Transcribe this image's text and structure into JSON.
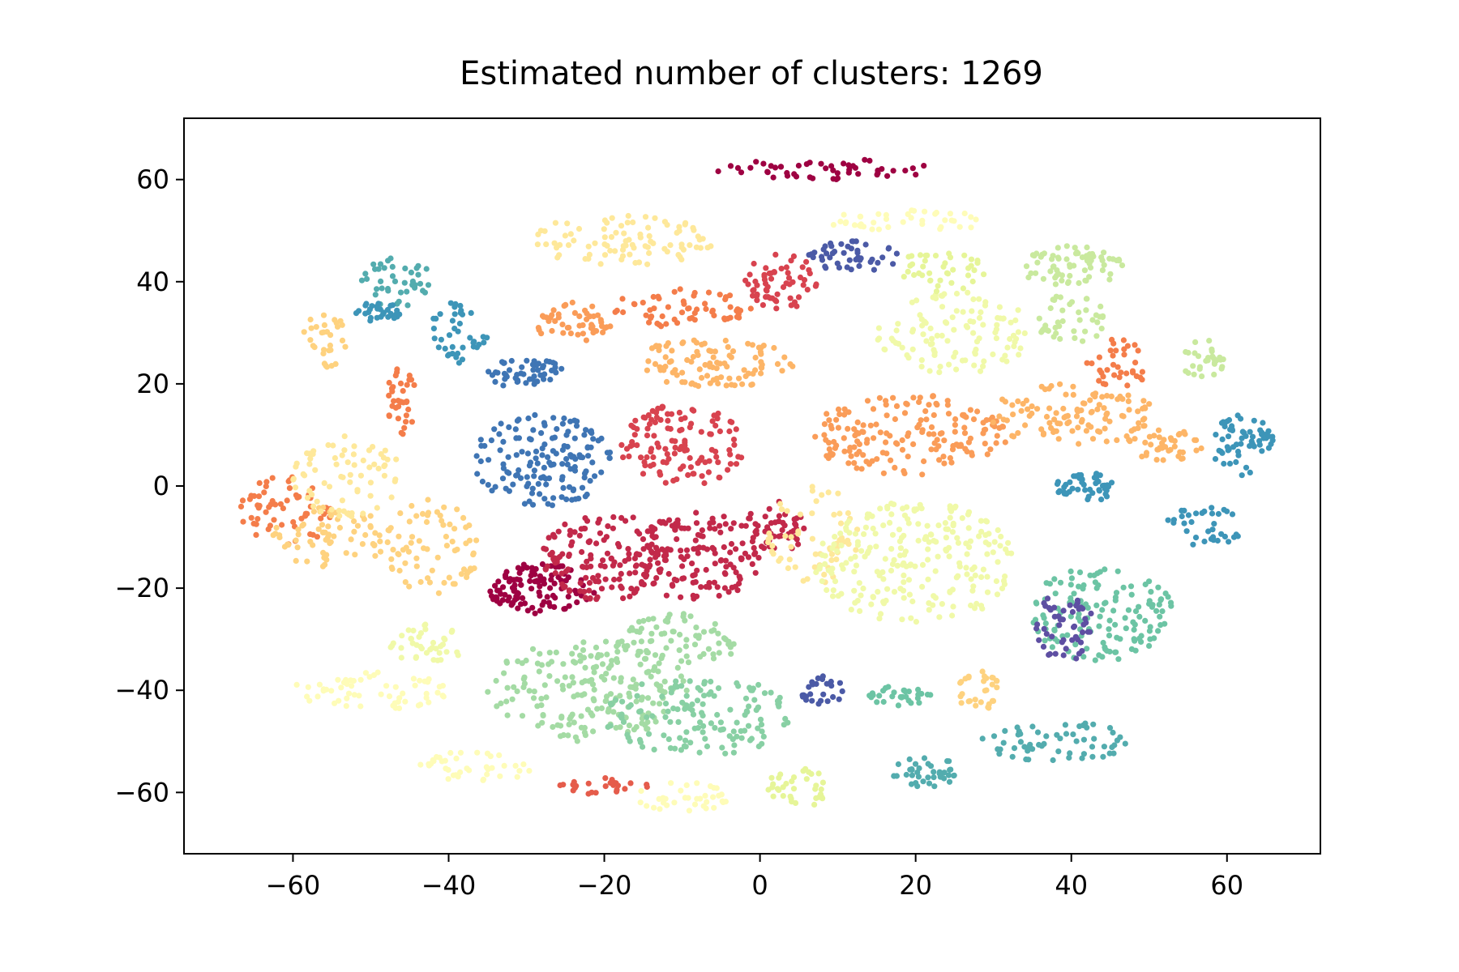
{
  "chart_data": {
    "type": "scatter",
    "title": "Estimated number of clusters: 1269",
    "xlabel": "",
    "ylabel": "",
    "xlim": [
      -74,
      72
    ],
    "ylim": [
      -72,
      72
    ],
    "xticks": [
      -60,
      -40,
      -20,
      0,
      20,
      40,
      60
    ],
    "yticks": [
      -60,
      -40,
      -20,
      0,
      20,
      40,
      60
    ],
    "xtick_labels": [
      "−60",
      "−40",
      "−20",
      "0",
      "20",
      "40",
      "60"
    ],
    "ytick_labels": [
      "−60",
      "−40",
      "−20",
      "0",
      "20",
      "40",
      "60"
    ],
    "grid": false,
    "legend": "none",
    "colormap": "Spectral",
    "clusters": [
      {
        "color": "#9e0142",
        "x": -28,
        "y": -20,
        "rx": 7,
        "ry": 5,
        "n": 110
      },
      {
        "color": "#9e0142",
        "x": 10,
        "y": 62,
        "rx": 16,
        "ry": 2,
        "n": 50
      },
      {
        "color": "#c2294a",
        "x": -20,
        "y": -14,
        "rx": 8,
        "ry": 9,
        "n": 140
      },
      {
        "color": "#c2294a",
        "x": -8,
        "y": -14,
        "rx": 8,
        "ry": 9,
        "n": 140
      },
      {
        "color": "#c2294a",
        "x": 2,
        "y": -8,
        "rx": 4,
        "ry": 5,
        "n": 50
      },
      {
        "color": "#d8434f",
        "x": -10,
        "y": 8,
        "rx": 8,
        "ry": 8,
        "n": 120
      },
      {
        "color": "#d8434f",
        "x": 3,
        "y": 40,
        "rx": 5,
        "ry": 6,
        "n": 60
      },
      {
        "color": "#e55c4b",
        "x": -20,
        "y": -59,
        "rx": 6,
        "ry": 2,
        "n": 25
      },
      {
        "color": "#f47d4a",
        "x": -61,
        "y": -5,
        "rx": 6,
        "ry": 7,
        "n": 60
      },
      {
        "color": "#f47d4a",
        "x": -46,
        "y": 17,
        "rx": 2,
        "ry": 7,
        "n": 35
      },
      {
        "color": "#f47d4a",
        "x": 46,
        "y": 24,
        "rx": 4,
        "ry": 5,
        "n": 35
      },
      {
        "color": "#f47d4a",
        "x": -10,
        "y": 35,
        "rx": 9,
        "ry": 4,
        "n": 60
      },
      {
        "color": "#fa9c58",
        "x": 19,
        "y": 10,
        "rx": 13,
        "ry": 8,
        "n": 170
      },
      {
        "color": "#fa9c58",
        "x": -24,
        "y": 32,
        "rx": 5,
        "ry": 4,
        "n": 50
      },
      {
        "color": "#fdb567",
        "x": 40,
        "y": 14,
        "rx": 11,
        "ry": 6,
        "n": 110
      },
      {
        "color": "#fdb567",
        "x": -6,
        "y": 24,
        "rx": 11,
        "ry": 5,
        "n": 100
      },
      {
        "color": "#fdb567",
        "x": 52,
        "y": 8,
        "rx": 5,
        "ry": 3,
        "n": 40
      },
      {
        "color": "#fed27f",
        "x": -55,
        "y": -10,
        "rx": 8,
        "ry": 6,
        "n": 70
      },
      {
        "color": "#fed27f",
        "x": -42,
        "y": -12,
        "rx": 6,
        "ry": 10,
        "n": 70
      },
      {
        "color": "#fed27f",
        "x": 28,
        "y": -40,
        "rx": 3,
        "ry": 4,
        "n": 30
      },
      {
        "color": "#fed27f",
        "x": -56,
        "y": 28,
        "rx": 3,
        "ry": 7,
        "n": 30
      },
      {
        "color": "#fee89a",
        "x": -53,
        "y": 2,
        "rx": 7,
        "ry": 8,
        "n": 70
      },
      {
        "color": "#fee89a",
        "x": -18,
        "y": 48,
        "rx": 12,
        "ry": 5,
        "n": 90
      },
      {
        "color": "#fee89a",
        "x": 7,
        "y": -10,
        "rx": 6,
        "ry": 10,
        "n": 60
      },
      {
        "color": "#fefcb8",
        "x": -50,
        "y": -40,
        "rx": 10,
        "ry": 4,
        "n": 60
      },
      {
        "color": "#fefcb8",
        "x": -37,
        "y": -55,
        "rx": 8,
        "ry": 3,
        "n": 40
      },
      {
        "color": "#fefcb8",
        "x": -10,
        "y": -61,
        "rx": 6,
        "ry": 3,
        "n": 35
      },
      {
        "color": "#fefcb8",
        "x": 20,
        "y": 52,
        "rx": 12,
        "ry": 2,
        "n": 40
      },
      {
        "color": "#f0f9a8",
        "x": 20,
        "y": -15,
        "rx": 13,
        "ry": 12,
        "n": 230
      },
      {
        "color": "#f0f9a8",
        "x": 25,
        "y": 30,
        "rx": 10,
        "ry": 8,
        "n": 110
      },
      {
        "color": "#f0f9a8",
        "x": -43,
        "y": -31,
        "rx": 5,
        "ry": 4,
        "n": 40
      },
      {
        "color": "#e6f598",
        "x": 5,
        "y": -59,
        "rx": 4,
        "ry": 4,
        "n": 35
      },
      {
        "color": "#e6f598",
        "x": 23,
        "y": 42,
        "rx": 6,
        "ry": 4,
        "n": 40
      },
      {
        "color": "#c9e99e",
        "x": 40,
        "y": 43,
        "rx": 7,
        "ry": 4,
        "n": 70
      },
      {
        "color": "#c9e99e",
        "x": 57,
        "y": 25,
        "rx": 3,
        "ry": 4,
        "n": 30
      },
      {
        "color": "#c9e99e",
        "x": 40,
        "y": 33,
        "rx": 5,
        "ry": 5,
        "n": 40
      },
      {
        "color": "#a4dba4",
        "x": -22,
        "y": -40,
        "rx": 13,
        "ry": 10,
        "n": 200
      },
      {
        "color": "#a4dba4",
        "x": -10,
        "y": -30,
        "rx": 8,
        "ry": 5,
        "n": 70
      },
      {
        "color": "#88d0a4",
        "x": -8,
        "y": -45,
        "rx": 12,
        "ry": 8,
        "n": 140
      },
      {
        "color": "#6cc4a4",
        "x": 44,
        "y": -25,
        "rx": 9,
        "ry": 10,
        "n": 140
      },
      {
        "color": "#6cc4a4",
        "x": 18,
        "y": -41,
        "rx": 4,
        "ry": 2,
        "n": 30
      },
      {
        "color": "#53acae",
        "x": 38,
        "y": -50,
        "rx": 10,
        "ry": 4,
        "n": 60
      },
      {
        "color": "#53acae",
        "x": 22,
        "y": -56,
        "rx": 5,
        "ry": 3,
        "n": 40
      },
      {
        "color": "#53acae",
        "x": -47,
        "y": 40,
        "rx": 5,
        "ry": 5,
        "n": 40
      },
      {
        "color": "#3d95b8",
        "x": 62,
        "y": 8,
        "rx": 4,
        "ry": 6,
        "n": 60
      },
      {
        "color": "#3d95b8",
        "x": 42,
        "y": 0,
        "rx": 4,
        "ry": 3,
        "n": 50
      },
      {
        "color": "#3d95b8",
        "x": 57,
        "y": -8,
        "rx": 5,
        "ry": 4,
        "n": 35
      },
      {
        "color": "#3d95b8",
        "x": -39,
        "y": 30,
        "rx": 4,
        "ry": 6,
        "n": 40
      },
      {
        "color": "#3d95b8",
        "x": -49,
        "y": 34,
        "rx": 3,
        "ry": 2,
        "n": 30
      },
      {
        "color": "#3f75b4",
        "x": -28,
        "y": 5,
        "rx": 9,
        "ry": 9,
        "n": 150
      },
      {
        "color": "#3f75b4",
        "x": -30,
        "y": 22,
        "rx": 5,
        "ry": 3,
        "n": 50
      },
      {
        "color": "#4b5aa6",
        "x": 12,
        "y": 45,
        "rx": 6,
        "ry": 3,
        "n": 45
      },
      {
        "color": "#4b5aa6",
        "x": 8,
        "y": -40,
        "rx": 3,
        "ry": 3,
        "n": 25
      },
      {
        "color": "#5e4fa2",
        "x": 39,
        "y": -28,
        "rx": 4,
        "ry": 7,
        "n": 50
      }
    ]
  }
}
